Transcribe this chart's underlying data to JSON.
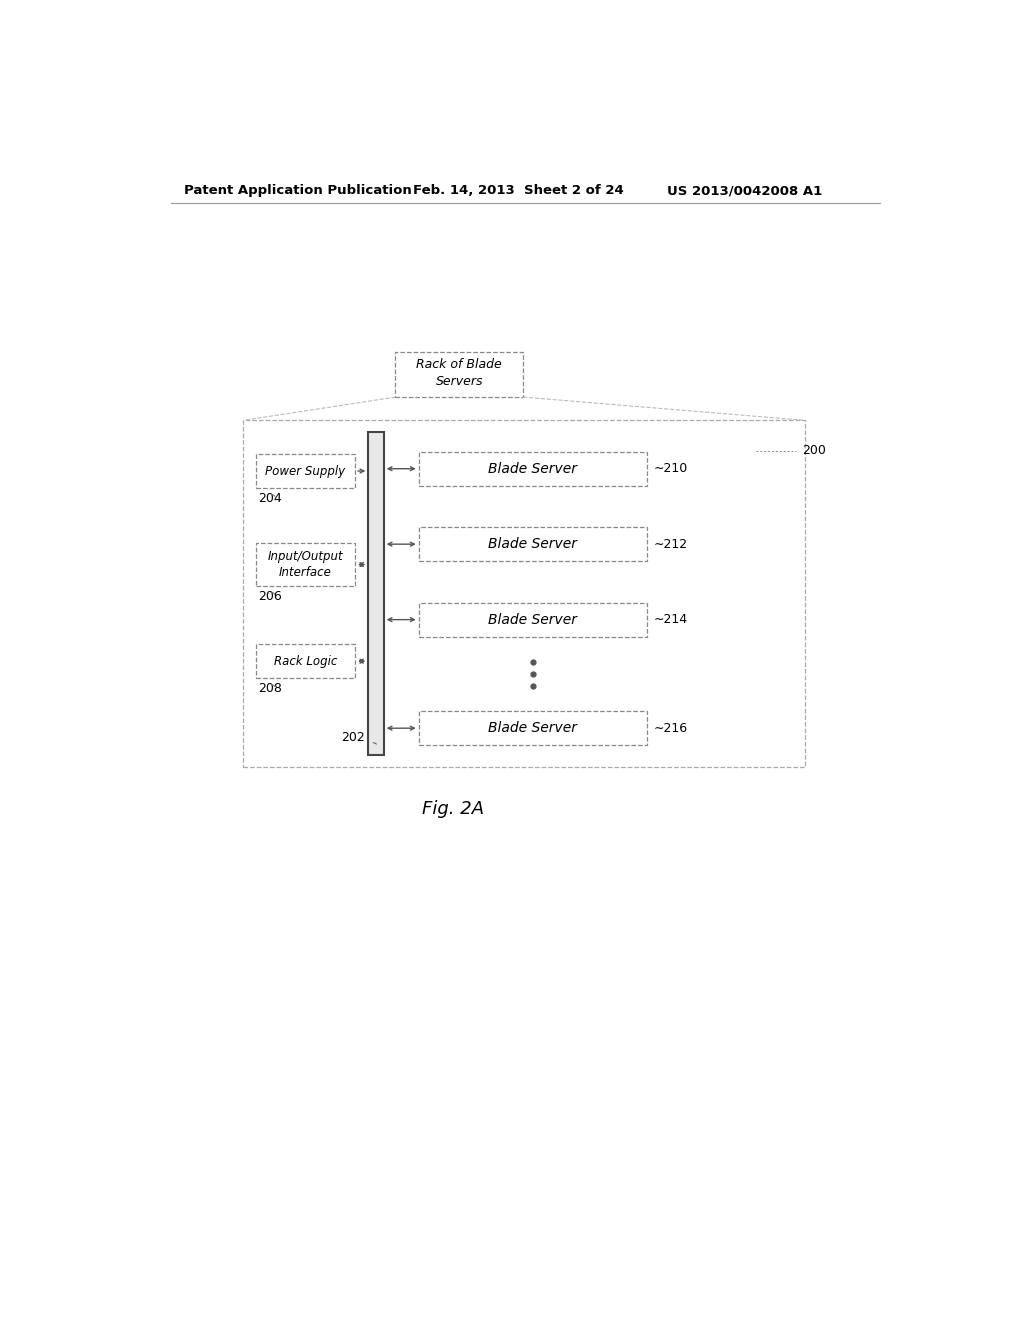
{
  "bg_color": "#ffffff",
  "header_text": "Patent Application Publication",
  "header_date": "Feb. 14, 2013  Sheet 2 of 24",
  "header_patent": "US 2013/0042008 A1",
  "fig_label": "Fig. 2A",
  "ref_200": "200",
  "ref_202": "202",
  "ref_204": "204",
  "ref_206": "206",
  "ref_208": "208",
  "ref_210": "210",
  "ref_212": "212",
  "ref_214": "214",
  "ref_216": "216",
  "label_rack": "Rack of Blade\nServers",
  "label_power": "Power Supply",
  "label_io": "Input/Output\nInterface",
  "label_logic": "Rack Logic",
  "label_blade": "Blade Server"
}
